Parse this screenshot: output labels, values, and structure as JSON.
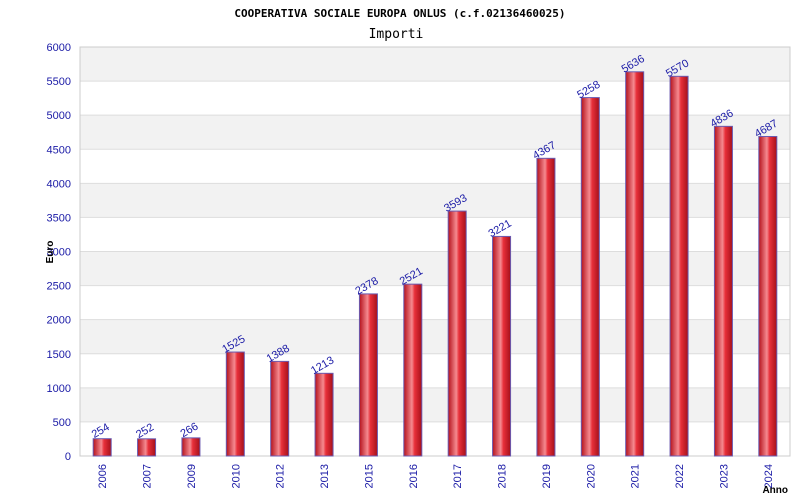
{
  "chart_data": {
    "type": "bar",
    "title": "COOPERATIVA SOCIALE EUROPA ONLUS (c.f.02136460025)",
    "subtitle": "Importi",
    "xlabel": "Anno",
    "ylabel": "Euro",
    "categories": [
      "2006",
      "2007",
      "2009",
      "2010",
      "2012",
      "2013",
      "2015",
      "2016",
      "2017",
      "2018",
      "2019",
      "2020",
      "2021",
      "2022",
      "2023",
      "2024"
    ],
    "values": [
      254,
      252,
      266,
      1525,
      1388,
      1213,
      2378,
      2521,
      3593,
      3221,
      4367,
      5258,
      5636,
      5570,
      4836,
      4687
    ],
    "ylim": [
      0,
      6000
    ],
    "yticks": [
      0,
      500,
      1000,
      1500,
      2000,
      2500,
      3000,
      3500,
      4000,
      4500,
      5000,
      5500,
      6000
    ],
    "grid": true,
    "bar_color": "#e8232f",
    "bar_edge_color": "#6a5ab0",
    "label_color": "#1a1aa6"
  }
}
